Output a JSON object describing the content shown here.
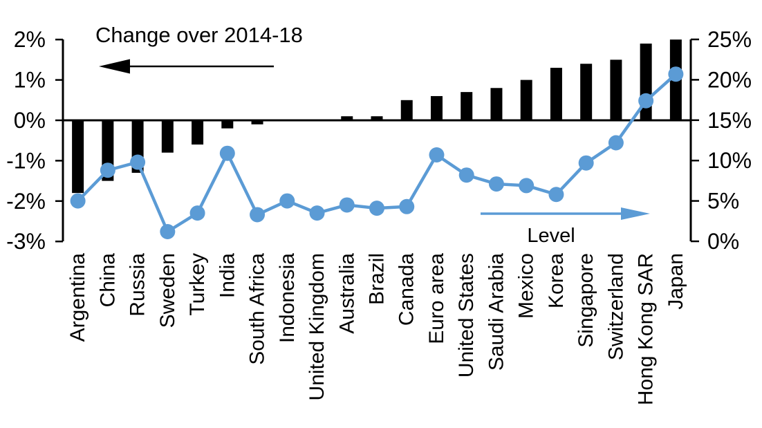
{
  "chart_data": {
    "type": "combo",
    "title": "Change over 2014-18",
    "categories": [
      "Argentina",
      "China",
      "Russia",
      "Sweden",
      "Turkey",
      "India",
      "South Africa",
      "Indonesia",
      "United Kingdom",
      "Australia",
      "Brazil",
      "Canada",
      "Euro area",
      "United States",
      "Saudi Arabia",
      "Mexico",
      "Korea",
      "Singapore",
      "Switzerland",
      "Hong Kong SAR",
      "Japan"
    ],
    "series": [
      {
        "name": "Change over 2014-18",
        "type": "bar",
        "axis": "left",
        "color": "#000000",
        "values": [
          -1.8,
          -1.5,
          -1.3,
          -0.8,
          -0.6,
          -0.2,
          -0.1,
          0.0,
          0.0,
          0.1,
          0.1,
          0.5,
          0.6,
          0.7,
          0.8,
          1.0,
          1.3,
          1.4,
          1.5,
          1.9,
          2.0
        ]
      },
      {
        "name": "Level",
        "type": "line",
        "axis": "right",
        "color": "#5B9BD5",
        "values": [
          5.0,
          8.8,
          9.8,
          1.2,
          3.5,
          10.9,
          3.3,
          5.0,
          3.5,
          4.5,
          4.1,
          4.3,
          10.7,
          8.2,
          7.1,
          6.9,
          5.8,
          9.7,
          12.2,
          17.4,
          20.7
        ]
      }
    ],
    "left_axis": {
      "min": -3,
      "max": 2,
      "ticks": [
        "2%",
        "1%",
        "0%",
        "-1%",
        "-2%",
        "-3%"
      ],
      "tick_values": [
        2,
        1,
        0,
        -1,
        -2,
        -3
      ]
    },
    "right_axis": {
      "min": 0,
      "max": 25,
      "ticks": [
        "25%",
        "20%",
        "15%",
        "10%",
        "5%",
        "0%"
      ],
      "tick_values": [
        25,
        20,
        15,
        10,
        5,
        0
      ]
    },
    "annotations": {
      "bar_label": "Change over 2014-18",
      "bar_arrow_direction": "left",
      "bar_arrow_color": "#000000",
      "line_label": "Level",
      "line_arrow_direction": "right",
      "line_arrow_color": "#5B9BD5"
    },
    "legend_position": "none",
    "grid": false,
    "background_color": "#ffffff"
  }
}
